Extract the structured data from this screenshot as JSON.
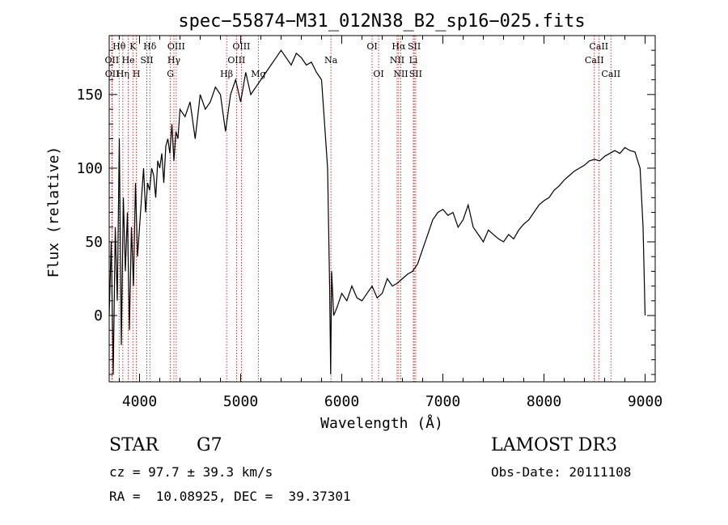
{
  "chart_data": {
    "type": "line",
    "title": "spec−55874−M31_012N38_B2_sp16−025.fits",
    "xlabel": "Wavelength (Å)",
    "ylabel": "Flux (relative)",
    "xlim": [
      3700,
      9100
    ],
    "ylim": [
      -45,
      190
    ],
    "xticks": [
      4000,
      5000,
      6000,
      7000,
      8000,
      9000
    ],
    "yticks": [
      0,
      50,
      100,
      150
    ],
    "grid": false,
    "line_color": "#000000",
    "marker_color": "#cc0000",
    "series": [
      {
        "x": [
          3700,
          3720,
          3740,
          3760,
          3780,
          3800,
          3820,
          3840,
          3860,
          3880,
          3900,
          3920,
          3940,
          3960,
          3980,
          4000,
          4020,
          4040,
          4060,
          4080,
          4100,
          4120,
          4140,
          4160,
          4180,
          4200,
          4220,
          4240,
          4260,
          4280,
          4300,
          4320,
          4340,
          4360,
          4380,
          4400,
          4450,
          4500,
          4550,
          4600,
          4650,
          4700,
          4750,
          4800,
          4850,
          4900,
          4950,
          5000,
          5050,
          5100,
          5150,
          5200,
          5250,
          5300,
          5350,
          5400,
          5450,
          5500,
          5550,
          5600,
          5650,
          5700,
          5750,
          5800,
          5830,
          5860,
          5880,
          5890,
          5900,
          5920,
          5950,
          6000,
          6050,
          6100,
          6150,
          6200,
          6250,
          6300,
          6350,
          6400,
          6450,
          6500,
          6550,
          6600,
          6650,
          6700,
          6750,
          6800,
          6850,
          6900,
          6950,
          7000,
          7050,
          7100,
          7150,
          7200,
          7250,
          7300,
          7350,
          7400,
          7450,
          7500,
          7550,
          7600,
          7650,
          7700,
          7750,
          7800,
          7850,
          7900,
          7950,
          8000,
          8050,
          8100,
          8150,
          8200,
          8250,
          8300,
          8350,
          8400,
          8450,
          8500,
          8550,
          8600,
          8650,
          8700,
          8750,
          8800,
          8850,
          8900,
          8950,
          8980,
          9000
        ],
        "values": [
          0,
          50,
          -40,
          60,
          10,
          120,
          -20,
          80,
          30,
          70,
          -10,
          60,
          20,
          90,
          40,
          60,
          80,
          100,
          70,
          90,
          85,
          100,
          95,
          80,
          105,
          100,
          110,
          90,
          115,
          120,
          110,
          130,
          105,
          125,
          120,
          140,
          135,
          145,
          120,
          150,
          140,
          145,
          155,
          150,
          125,
          150,
          160,
          145,
          165,
          150,
          155,
          160,
          165,
          170,
          175,
          180,
          175,
          170,
          178,
          175,
          170,
          172,
          165,
          160,
          130,
          100,
          20,
          -40,
          30,
          0,
          5,
          15,
          10,
          20,
          12,
          10,
          15,
          20,
          12,
          15,
          25,
          20,
          22,
          25,
          28,
          30,
          35,
          45,
          55,
          65,
          70,
          72,
          68,
          70,
          60,
          65,
          75,
          60,
          55,
          50,
          58,
          55,
          52,
          50,
          55,
          52,
          58,
          62,
          65,
          70,
          75,
          78,
          80,
          85,
          88,
          92,
          95,
          98,
          100,
          102,
          105,
          106,
          105,
          108,
          110,
          112,
          110,
          114,
          112,
          111,
          100,
          60,
          0
        ]
      }
    ],
    "lines": [
      {
        "name": "Hθ",
        "x": 3798,
        "row": 0
      },
      {
        "name": "OII",
        "x": 3727,
        "row": 1
      },
      {
        "name": "OII",
        "x": 3729,
        "row": 2
      },
      {
        "name": "He",
        "x": 3889,
        "row": 1
      },
      {
        "name": "Hη",
        "x": 3835,
        "row": 2
      },
      {
        "name": "K",
        "x": 3934,
        "row": 0
      },
      {
        "name": "H",
        "x": 3969,
        "row": 2
      },
      {
        "name": "SII",
        "x": 4072,
        "row": 1
      },
      {
        "name": "Hδ",
        "x": 4102,
        "row": 0
      },
      {
        "name": "OIII",
        "x": 4363,
        "row": 0
      },
      {
        "name": "Hγ",
        "x": 4340,
        "row": 1
      },
      {
        "name": "G",
        "x": 4305,
        "row": 2
      },
      {
        "name": "Hβ",
        "x": 4861,
        "row": 2
      },
      {
        "name": "OIII",
        "x": 5007,
        "row": 0
      },
      {
        "name": "OIII",
        "x": 4959,
        "row": 1
      },
      {
        "name": "Mg",
        "x": 5175,
        "row": 2
      },
      {
        "name": "Na",
        "x": 5893,
        "row": 1
      },
      {
        "name": "OI",
        "x": 6300,
        "row": 0
      },
      {
        "name": "OI",
        "x": 6364,
        "row": 2
      },
      {
        "name": "Hα",
        "x": 6563,
        "row": 0
      },
      {
        "name": "NII",
        "x": 6548,
        "row": 1
      },
      {
        "name": "NII",
        "x": 6584,
        "row": 2
      },
      {
        "name": "SII",
        "x": 6717,
        "row": 0
      },
      {
        "name": "Li",
        "x": 6708,
        "row": 1
      },
      {
        "name": "SII",
        "x": 6731,
        "row": 2
      },
      {
        "name": "CaII",
        "x": 8542,
        "row": 0
      },
      {
        "name": "CaII",
        "x": 8498,
        "row": 1
      },
      {
        "name": "CaII",
        "x": 8662,
        "row": 2
      }
    ]
  },
  "info": {
    "object_class": "STAR",
    "subclass": "G7",
    "survey": "LAMOST DR3",
    "redshift": "cz = 97.7 ± 39.3 km/s",
    "obs_date": "Obs-Date: 20111108",
    "coords": "RA =  10.08925, DEC =  39.37301"
  }
}
